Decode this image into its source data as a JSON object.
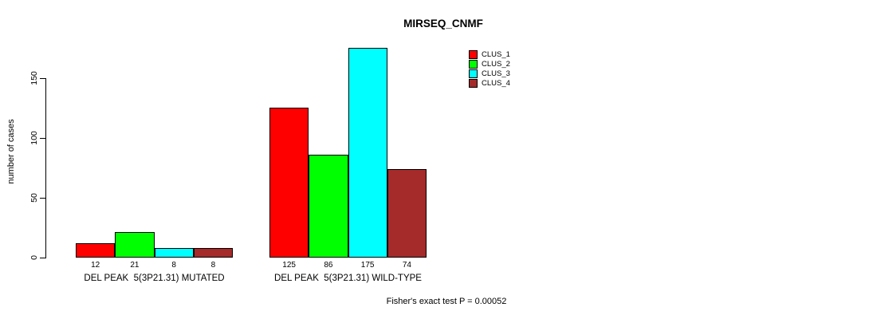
{
  "title": "MIRSEQ_CNMF",
  "footer": "Fisher's exact test P = 0.00052",
  "chart_data": {
    "type": "bar",
    "title": "MIRSEQ_CNMF",
    "xlabel": "",
    "ylabel": "number of cases",
    "yticks": [
      0,
      50,
      100,
      150
    ],
    "ylim": [
      0,
      175
    ],
    "grid": false,
    "legend_position": "top-right",
    "categories": [
      "DEL PEAK  5(3P21.31) MUTATED",
      "DEL PEAK  5(3P21.31) WILD-TYPE"
    ],
    "series": [
      {
        "name": "CLUS_1",
        "color": "#FF0000",
        "values": [
          12,
          125
        ]
      },
      {
        "name": "CLUS_2",
        "color": "#00FF00",
        "values": [
          21,
          86
        ]
      },
      {
        "name": "CLUS_3",
        "color": "#00FFFF",
        "values": [
          8,
          175
        ]
      },
      {
        "name": "CLUS_4",
        "color": "#A52A2A",
        "values": [
          8,
          74
        ]
      }
    ],
    "bar_value_labels": [
      [
        12,
        21,
        8,
        8
      ],
      [
        125,
        86,
        175,
        74
      ]
    ],
    "annotation": "Fisher's exact test P = 0.00052"
  }
}
